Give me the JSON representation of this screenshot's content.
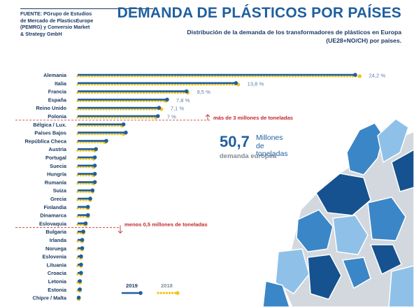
{
  "header": {
    "source": "FUENTE: PGrupo de Estudios\nde Mercado de PlasticsEurope\n(PEMRG) y Conversio Market\n& Strategy GmbH",
    "title": "DEMANDA DE PLÁSTICOS POR PAÍSES",
    "subtitle": "Distribución de la demanda de los transformadores de plásticos en Europa\n(UE28+NO/CH) por países."
  },
  "summary": {
    "value": "50,7",
    "unit": "Millones de\ntoneladas",
    "caption": "demanda europea"
  },
  "colors": {
    "series_2019": "#1f5f9e",
    "series_2018": "#f0c419",
    "text": "#1b3a63",
    "annotation": "#c0272d",
    "map_dark": "#15528f",
    "map_mid": "#3b86c6",
    "map_light": "#8fc1e8",
    "map_grey": "#d2d8de"
  },
  "chart_data": {
    "type": "bar",
    "categories": [
      "Alemania",
      "Italia",
      "Francia",
      "España",
      "Reino Unido",
      "Polonia",
      "Bélgica / Lux.",
      "Países Bajos",
      "República Checa",
      "Austria",
      "Portugal",
      "Suecia",
      "Hungría",
      "Rumanía",
      "Suiza",
      "Grecia",
      "Finlandia",
      "Dinamarca",
      "Eslovaquia",
      "Bulgaria",
      "Irlanda",
      "Noruega",
      "Eslovenia",
      "Lituania",
      "Croacia",
      "Letonia",
      "Estonia",
      "Chipre / Malta"
    ],
    "series": [
      {
        "name": "2019",
        "values": [
          24.2,
          13.8,
          9.5,
          7.8,
          7.1,
          7.0,
          4.0,
          4.2,
          2.5,
          1.6,
          1.5,
          1.5,
          1.5,
          1.5,
          1.3,
          1.1,
          0.9,
          0.9,
          0.7,
          0.5,
          0.4,
          0.4,
          0.3,
          0.3,
          0.3,
          0.2,
          0.2,
          0.1
        ]
      },
      {
        "name": "2018",
        "values": [
          24.6,
          14.0,
          9.6,
          7.7,
          7.3,
          6.8,
          3.9,
          4.0,
          2.4,
          1.5,
          1.4,
          1.4,
          1.4,
          1.4,
          1.3,
          1.1,
          0.9,
          0.9,
          0.7,
          0.5,
          0.4,
          0.4,
          0.3,
          0.3,
          0.3,
          0.2,
          0.2,
          0.1
        ]
      }
    ],
    "value_labels": [
      "24,2 %",
      "13,8 %",
      "9,5 %",
      "7,8 %",
      "7,1 %",
      "7 %"
    ],
    "unit": "%",
    "xlim": [
      0,
      25
    ],
    "grid": false,
    "legend": "bottom",
    "annotations": [
      {
        "text": "más de 3 millones de toneladas",
        "after_category": "Polonia"
      },
      {
        "text": "menos 0,5 millones de toneladas",
        "after_category": "Eslovaquia"
      }
    ]
  }
}
